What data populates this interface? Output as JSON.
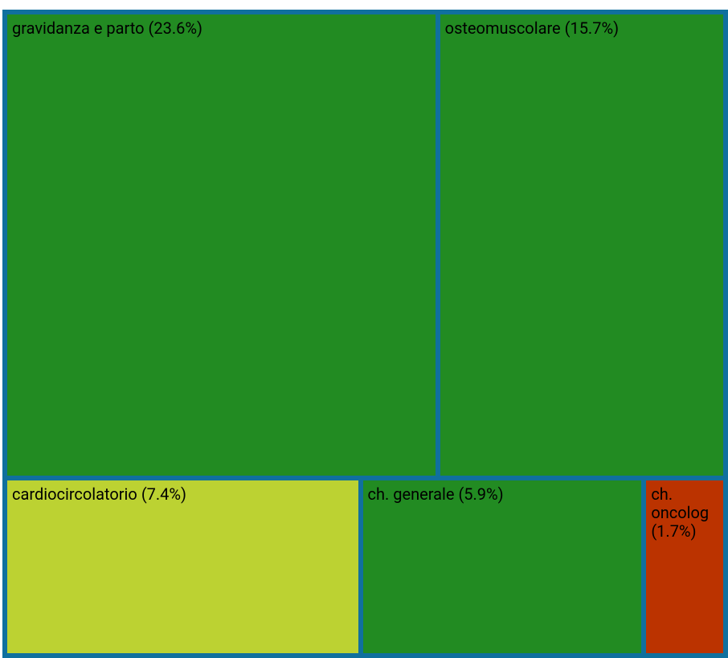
{
  "chart_data": {
    "type": "treemap",
    "categories": [
      "gravidanza e parto",
      "osteomuscolare",
      "cardiocircolatorio",
      "ch. generale",
      "ch. oncolog"
    ],
    "values": [
      23.6,
      15.7,
      7.4,
      5.9,
      1.7
    ],
    "value_labels": [
      "(23.6%)",
      "(15.7%)",
      "(7.4%)",
      "(5.9%)",
      "(1.7%)"
    ],
    "colors": [
      "#228b22",
      "#228b22",
      "#bcd232",
      "#228b22",
      "#bb3300"
    ],
    "border_color": "#10709e"
  }
}
